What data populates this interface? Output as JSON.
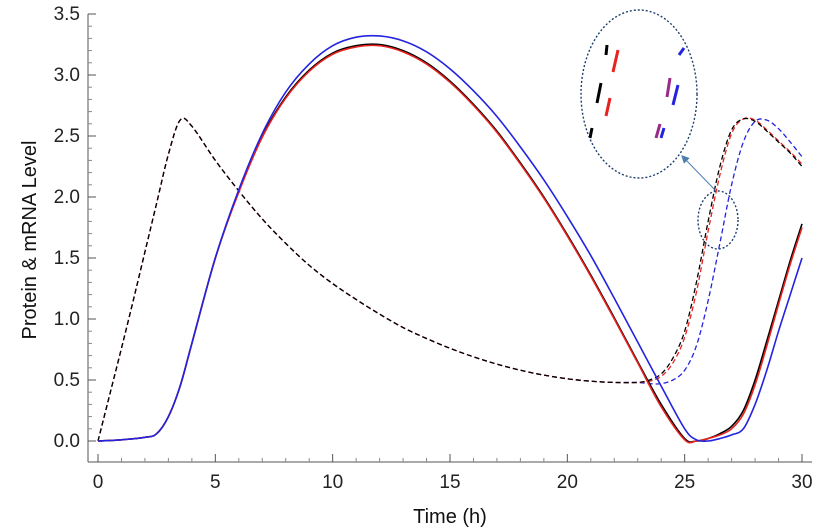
{
  "chart_data": {
    "type": "line",
    "title": "",
    "xlabel": "Time (h)",
    "ylabel": "Protein & mRNA Level",
    "xlim": [
      0,
      30
    ],
    "ylim": [
      0,
      3.5
    ],
    "xticks": [
      0,
      5,
      10,
      15,
      20,
      25,
      30
    ],
    "xtick_labels": [
      "0",
      "5",
      "10",
      "15",
      "20",
      "25",
      "30"
    ],
    "yticks": [
      0,
      0.5,
      1,
      1.5,
      2,
      2.5,
      3,
      3.5
    ],
    "ytick_labels": [
      "0.0",
      "0.5",
      "1.0",
      "1.5",
      "2.0",
      "2.5",
      "3.0",
      "3.5"
    ],
    "grid": false,
    "legend": "none",
    "series": [
      {
        "name": "mRNA (black)",
        "color": "#000000",
        "style": "dashed",
        "x": [
          0,
          0.5,
          1,
          1.5,
          2,
          2.5,
          3,
          3.5,
          4,
          5,
          6,
          7,
          8,
          9,
          10,
          11,
          12,
          13,
          14,
          15,
          16,
          17,
          18,
          19,
          20,
          21,
          22,
          23,
          23.5,
          24,
          24.5,
          25,
          25.5,
          26,
          26.5,
          27,
          27.5,
          28,
          28.5,
          29,
          29.5,
          30
        ],
        "y": [
          0,
          0.38,
          0.76,
          1.15,
          1.55,
          1.95,
          2.35,
          2.63,
          2.58,
          2.3,
          2.05,
          1.82,
          1.62,
          1.44,
          1.29,
          1.16,
          1.04,
          0.93,
          0.84,
          0.76,
          0.69,
          0.63,
          0.58,
          0.54,
          0.51,
          0.49,
          0.48,
          0.48,
          0.5,
          0.55,
          0.68,
          0.9,
          1.3,
          1.8,
          2.25,
          2.55,
          2.64,
          2.62,
          2.54,
          2.45,
          2.36,
          2.25
        ]
      },
      {
        "name": "mRNA (red)",
        "color": "#e8231f",
        "style": "dashed",
        "x": [
          0,
          0.5,
          1,
          1.5,
          2,
          2.5,
          3,
          3.5,
          4,
          5,
          6,
          7,
          8,
          9,
          10,
          11,
          12,
          13,
          14,
          15,
          16,
          17,
          18,
          19,
          20,
          21,
          22,
          23,
          23.5,
          24,
          24.5,
          25,
          25.5,
          26,
          26.5,
          27,
          27.5,
          28,
          28.5,
          29,
          29.5,
          30
        ],
        "y": [
          0,
          0.38,
          0.76,
          1.15,
          1.55,
          1.95,
          2.35,
          2.63,
          2.58,
          2.3,
          2.05,
          1.82,
          1.62,
          1.44,
          1.29,
          1.16,
          1.04,
          0.93,
          0.84,
          0.76,
          0.69,
          0.63,
          0.58,
          0.54,
          0.51,
          0.49,
          0.48,
          0.48,
          0.49,
          0.53,
          0.64,
          0.85,
          1.22,
          1.72,
          2.18,
          2.52,
          2.64,
          2.63,
          2.55,
          2.46,
          2.37,
          2.27
        ]
      },
      {
        "name": "mRNA (blue)",
        "color": "#2323e0",
        "style": "dashed",
        "x": [
          0,
          0.5,
          1,
          1.5,
          2,
          2.5,
          3,
          3.5,
          4,
          5,
          6,
          7,
          8,
          9,
          10,
          11,
          12,
          13,
          14,
          15,
          16,
          17,
          18,
          19,
          20,
          21,
          22,
          23,
          23.5,
          24,
          24.5,
          25,
          25.5,
          26,
          26.5,
          27,
          27.5,
          28,
          28.5,
          29,
          29.5,
          30
        ],
        "y": [
          0,
          0.38,
          0.76,
          1.15,
          1.55,
          1.95,
          2.35,
          2.63,
          2.58,
          2.3,
          2.05,
          1.82,
          1.62,
          1.44,
          1.29,
          1.16,
          1.04,
          0.93,
          0.84,
          0.76,
          0.69,
          0.63,
          0.58,
          0.54,
          0.51,
          0.49,
          0.48,
          0.48,
          0.47,
          0.47,
          0.5,
          0.58,
          0.78,
          1.15,
          1.62,
          2.1,
          2.45,
          2.62,
          2.63,
          2.56,
          2.45,
          2.33
        ]
      },
      {
        "name": "Protein (black)",
        "color": "#000000",
        "style": "solid",
        "x": [
          0,
          1,
          2,
          2.5,
          3,
          3.5,
          4,
          5,
          6,
          7,
          8,
          9,
          10,
          11,
          12,
          13,
          14,
          15,
          16,
          17,
          18,
          19,
          20,
          21,
          22,
          23,
          24,
          25,
          25.5,
          26,
          26.5,
          27,
          27.5,
          28,
          28.5,
          29,
          29.5,
          30
        ],
        "y": [
          0,
          0.01,
          0.03,
          0.06,
          0.2,
          0.45,
          0.8,
          1.5,
          2.05,
          2.5,
          2.82,
          3.04,
          3.18,
          3.24,
          3.25,
          3.2,
          3.1,
          2.95,
          2.76,
          2.54,
          2.28,
          2.0,
          1.69,
          1.36,
          1.01,
          0.65,
          0.3,
          0.02,
          0,
          0.02,
          0.06,
          0.12,
          0.25,
          0.5,
          0.82,
          1.15,
          1.48,
          1.78
        ]
      },
      {
        "name": "Protein (red)",
        "color": "#e8231f",
        "style": "solid",
        "x": [
          0,
          1,
          2,
          2.5,
          3,
          3.5,
          4,
          5,
          6,
          7,
          8,
          9,
          10,
          11,
          12,
          13,
          14,
          15,
          16,
          17,
          18,
          19,
          20,
          21,
          22,
          23,
          24,
          25,
          25.5,
          26,
          26.5,
          27,
          27.5,
          28,
          28.5,
          29,
          29.5,
          30
        ],
        "y": [
          0,
          0.01,
          0.03,
          0.06,
          0.2,
          0.45,
          0.8,
          1.5,
          2.04,
          2.49,
          2.81,
          3.03,
          3.17,
          3.23,
          3.24,
          3.19,
          3.09,
          2.94,
          2.75,
          2.53,
          2.27,
          1.99,
          1.68,
          1.35,
          1.0,
          0.64,
          0.28,
          0.01,
          0,
          0.02,
          0.05,
          0.1,
          0.22,
          0.46,
          0.78,
          1.12,
          1.45,
          1.75
        ]
      },
      {
        "name": "Protein (blue)",
        "color": "#2323e0",
        "style": "solid",
        "x": [
          0,
          1,
          2,
          2.5,
          3,
          3.5,
          4,
          5,
          6,
          7,
          8,
          9,
          10,
          11,
          12,
          13,
          14,
          15,
          16,
          17,
          18,
          19,
          20,
          21,
          22,
          23,
          24,
          25,
          25.5,
          26,
          26.5,
          27,
          27.5,
          28,
          28.5,
          29,
          29.5,
          30
        ],
        "y": [
          0,
          0.01,
          0.03,
          0.06,
          0.2,
          0.45,
          0.8,
          1.5,
          2.06,
          2.52,
          2.86,
          3.09,
          3.24,
          3.31,
          3.32,
          3.28,
          3.19,
          3.05,
          2.87,
          2.66,
          2.41,
          2.14,
          1.84,
          1.52,
          1.17,
          0.81,
          0.45,
          0.1,
          0.01,
          0,
          0.02,
          0.05,
          0.1,
          0.3,
          0.58,
          0.9,
          1.2,
          1.5
        ]
      }
    ],
    "annotations": [
      {
        "type": "zoom-inset",
        "target_x": 26.4,
        "target_y": 1.9,
        "description": "magnified view of crossing curves"
      }
    ]
  }
}
